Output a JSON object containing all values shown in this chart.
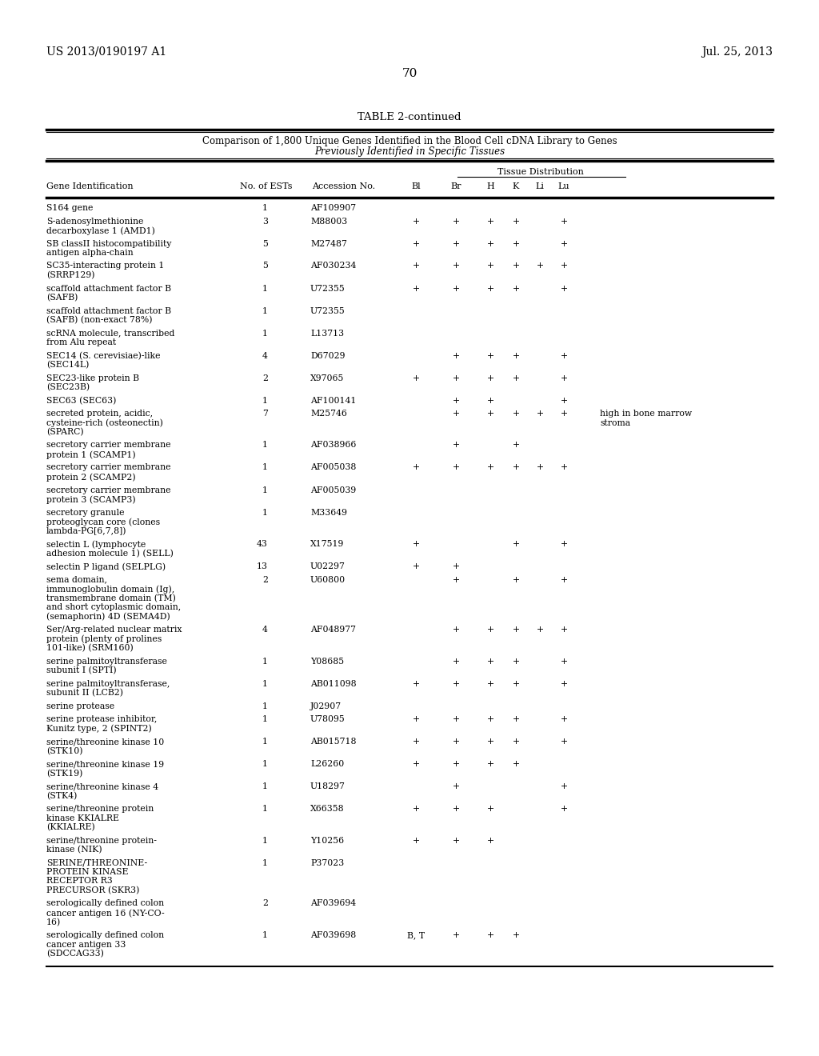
{
  "patent_left": "US 2013/0190197 A1",
  "patent_right": "Jul. 25, 2013",
  "page_number": "70",
  "table_title": "TABLE 2-continued",
  "table_subtitle1": "Comparison of 1,800 Unique Genes Identified in the Blood Cell cDNA Library to Genes",
  "table_subtitle2": "Previously Identified in Specific Tissues",
  "tissue_dist_label": "Tissue Distribution",
  "rows": [
    {
      "gene": "S164 gene",
      "ests": "1",
      "acc": "AF109907",
      "Bl": "",
      "Br": "",
      "H": "",
      "K": "",
      "Li": "",
      "Lu": "",
      "note": ""
    },
    {
      "gene": "S-adenosylmethionine\ndecarboxylase 1 (AMD1)",
      "ests": "3",
      "acc": "M88003",
      "Bl": "+",
      "Br": "+",
      "H": "+",
      "K": "+",
      "Li": "",
      "Lu": "+",
      "note": ""
    },
    {
      "gene": "SB classII histocompatibility\nantigen alpha-chain",
      "ests": "5",
      "acc": "M27487",
      "Bl": "+",
      "Br": "+",
      "H": "+",
      "K": "+",
      "Li": "",
      "Lu": "+",
      "note": ""
    },
    {
      "gene": "SC35-interacting protein 1\n(SRRP129)",
      "ests": "5",
      "acc": "AF030234",
      "Bl": "+",
      "Br": "+",
      "H": "+",
      "K": "+",
      "Li": "+",
      "Lu": "+",
      "note": ""
    },
    {
      "gene": "scaffold attachment factor B\n(SAFB)",
      "ests": "1",
      "acc": "U72355",
      "Bl": "+",
      "Br": "+",
      "H": "+",
      "K": "+",
      "Li": "",
      "Lu": "+",
      "note": ""
    },
    {
      "gene": "scaffold attachment factor B\n(SAFB) (non-exact 78%)",
      "ests": "1",
      "acc": "U72355",
      "Bl": "",
      "Br": "",
      "H": "",
      "K": "",
      "Li": "",
      "Lu": "",
      "note": ""
    },
    {
      "gene": "scRNA molecule, transcribed\nfrom Alu repeat",
      "ests": "1",
      "acc": "L13713",
      "Bl": "",
      "Br": "",
      "H": "",
      "K": "",
      "Li": "",
      "Lu": "",
      "note": ""
    },
    {
      "gene": "SEC14 (S. cerevisiae)-like\n(SEC14L)",
      "ests": "4",
      "acc": "D67029",
      "Bl": "",
      "Br": "+",
      "H": "+",
      "K": "+",
      "Li": "",
      "Lu": "+",
      "note": ""
    },
    {
      "gene": "SEC23-like protein B\n(SEC23B)",
      "ests": "2",
      "acc": "X97065",
      "Bl": "+",
      "Br": "+",
      "H": "+",
      "K": "+",
      "Li": "",
      "Lu": "+",
      "note": ""
    },
    {
      "gene": "SEC63 (SEC63)",
      "ests": "1",
      "acc": "AF100141",
      "Bl": "",
      "Br": "+",
      "H": "+",
      "K": "",
      "Li": "",
      "Lu": "+",
      "note": ""
    },
    {
      "gene": "secreted protein, acidic,\ncysteine-rich (osteonectin)\n(SPARC)",
      "ests": "7",
      "acc": "M25746",
      "Bl": "",
      "Br": "+",
      "H": "+",
      "K": "+",
      "Li": "+",
      "Lu": "+",
      "note": "high in bone marrow\nstroma"
    },
    {
      "gene": "secretory carrier membrane\nprotein 1 (SCAMP1)",
      "ests": "1",
      "acc": "AF038966",
      "Bl": "",
      "Br": "+",
      "H": "",
      "K": "+",
      "Li": "",
      "Lu": "",
      "note": ""
    },
    {
      "gene": "secretory carrier membrane\nprotein 2 (SCAMP2)",
      "ests": "1",
      "acc": "AF005038",
      "Bl": "+",
      "Br": "+",
      "H": "+",
      "K": "+",
      "Li": "+",
      "Lu": "+",
      "note": ""
    },
    {
      "gene": "secretory carrier membrane\nprotein 3 (SCAMP3)",
      "ests": "1",
      "acc": "AF005039",
      "Bl": "",
      "Br": "",
      "H": "",
      "K": "",
      "Li": "",
      "Lu": "",
      "note": ""
    },
    {
      "gene": "secretory granule\nproteoglycan core (clones\nlambda-PG[6,7,8])",
      "ests": "1",
      "acc": "M33649",
      "Bl": "",
      "Br": "",
      "H": "",
      "K": "",
      "Li": "",
      "Lu": "",
      "note": ""
    },
    {
      "gene": "selectin L (lymphocyte\nadhesion molecule 1) (SELL)",
      "ests": "43",
      "acc": "X17519",
      "Bl": "+",
      "Br": "",
      "H": "",
      "K": "+",
      "Li": "",
      "Lu": "+",
      "note": ""
    },
    {
      "gene": "selectin P ligand (SELPLG)",
      "ests": "13",
      "acc": "U02297",
      "Bl": "+",
      "Br": "+",
      "H": "",
      "K": "",
      "Li": "",
      "Lu": "",
      "note": ""
    },
    {
      "gene": "sema domain,\nimmunoglobulin domain (Ig),\ntransmembrane domain (TM)\nand short cytoplasmic domain,\n(semaphorin) 4D (SEMA4D)",
      "ests": "2",
      "acc": "U60800",
      "Bl": "",
      "Br": "+",
      "H": "",
      "K": "+",
      "Li": "",
      "Lu": "+",
      "note": ""
    },
    {
      "gene": "Ser/Arg-related nuclear matrix\nprotein (plenty of prolines\n101-like) (SRM160)",
      "ests": "4",
      "acc": "AF048977",
      "Bl": "",
      "Br": "+",
      "H": "+",
      "K": "+",
      "Li": "+",
      "Lu": "+",
      "note": ""
    },
    {
      "gene": "serine palmitoyltransferase\nsubunit I (SPTI)",
      "ests": "1",
      "acc": "Y08685",
      "Bl": "",
      "Br": "+",
      "H": "+",
      "K": "+",
      "Li": "",
      "Lu": "+",
      "note": ""
    },
    {
      "gene": "serine palmitoyltransferase,\nsubunit II (LCB2)",
      "ests": "1",
      "acc": "AB011098",
      "Bl": "+",
      "Br": "+",
      "H": "+",
      "K": "+",
      "Li": "",
      "Lu": "+",
      "note": ""
    },
    {
      "gene": "serine protease",
      "ests": "1",
      "acc": "J02907",
      "Bl": "",
      "Br": "",
      "H": "",
      "K": "",
      "Li": "",
      "Lu": "",
      "note": ""
    },
    {
      "gene": "serine protease inhibitor,\nKunitz type, 2 (SPINT2)",
      "ests": "1",
      "acc": "U78095",
      "Bl": "+",
      "Br": "+",
      "H": "+",
      "K": "+",
      "Li": "",
      "Lu": "+",
      "note": ""
    },
    {
      "gene": "serine/threonine kinase 10\n(STK10)",
      "ests": "1",
      "acc": "AB015718",
      "Bl": "+",
      "Br": "+",
      "H": "+",
      "K": "+",
      "Li": "",
      "Lu": "+",
      "note": ""
    },
    {
      "gene": "serine/threonine kinase 19\n(STK19)",
      "ests": "1",
      "acc": "L26260",
      "Bl": "+",
      "Br": "+",
      "H": "+",
      "K": "+",
      "Li": "",
      "Lu": "",
      "note": ""
    },
    {
      "gene": "serine/threonine kinase 4\n(STK4)",
      "ests": "1",
      "acc": "U18297",
      "Bl": "",
      "Br": "+",
      "H": "",
      "K": "",
      "Li": "",
      "Lu": "+",
      "note": ""
    },
    {
      "gene": "serine/threonine protein\nkinase KKIALRE\n(KKIALRE)",
      "ests": "1",
      "acc": "X66358",
      "Bl": "+",
      "Br": "+",
      "H": "+",
      "K": "",
      "Li": "",
      "Lu": "+",
      "note": ""
    },
    {
      "gene": "serine/threonine protein-\nkinase (NIK)",
      "ests": "1",
      "acc": "Y10256",
      "Bl": "+",
      "Br": "+",
      "H": "+",
      "K": "",
      "Li": "",
      "Lu": "",
      "note": ""
    },
    {
      "gene": "SERINE/THREONINE-\nPROTEIN KINASE\nRECEPTOR R3\nPRECURSOR (SKR3)",
      "ests": "1",
      "acc": "P37023",
      "Bl": "",
      "Br": "",
      "H": "",
      "K": "",
      "Li": "",
      "Lu": "",
      "note": ""
    },
    {
      "gene": "serologically defined colon\ncancer antigen 16 (NY-CO-\n16)",
      "ests": "2",
      "acc": "AF039694",
      "Bl": "",
      "Br": "",
      "H": "",
      "K": "",
      "Li": "",
      "Lu": "",
      "note": ""
    },
    {
      "gene": "serologically defined colon\ncancer antigen 33\n(SDCCAG33)",
      "ests": "1",
      "acc": "AF039698",
      "Bl": "B, T",
      "Br": "+",
      "H": "+",
      "K": "+",
      "Li": "",
      "Lu": "",
      "note": ""
    }
  ]
}
